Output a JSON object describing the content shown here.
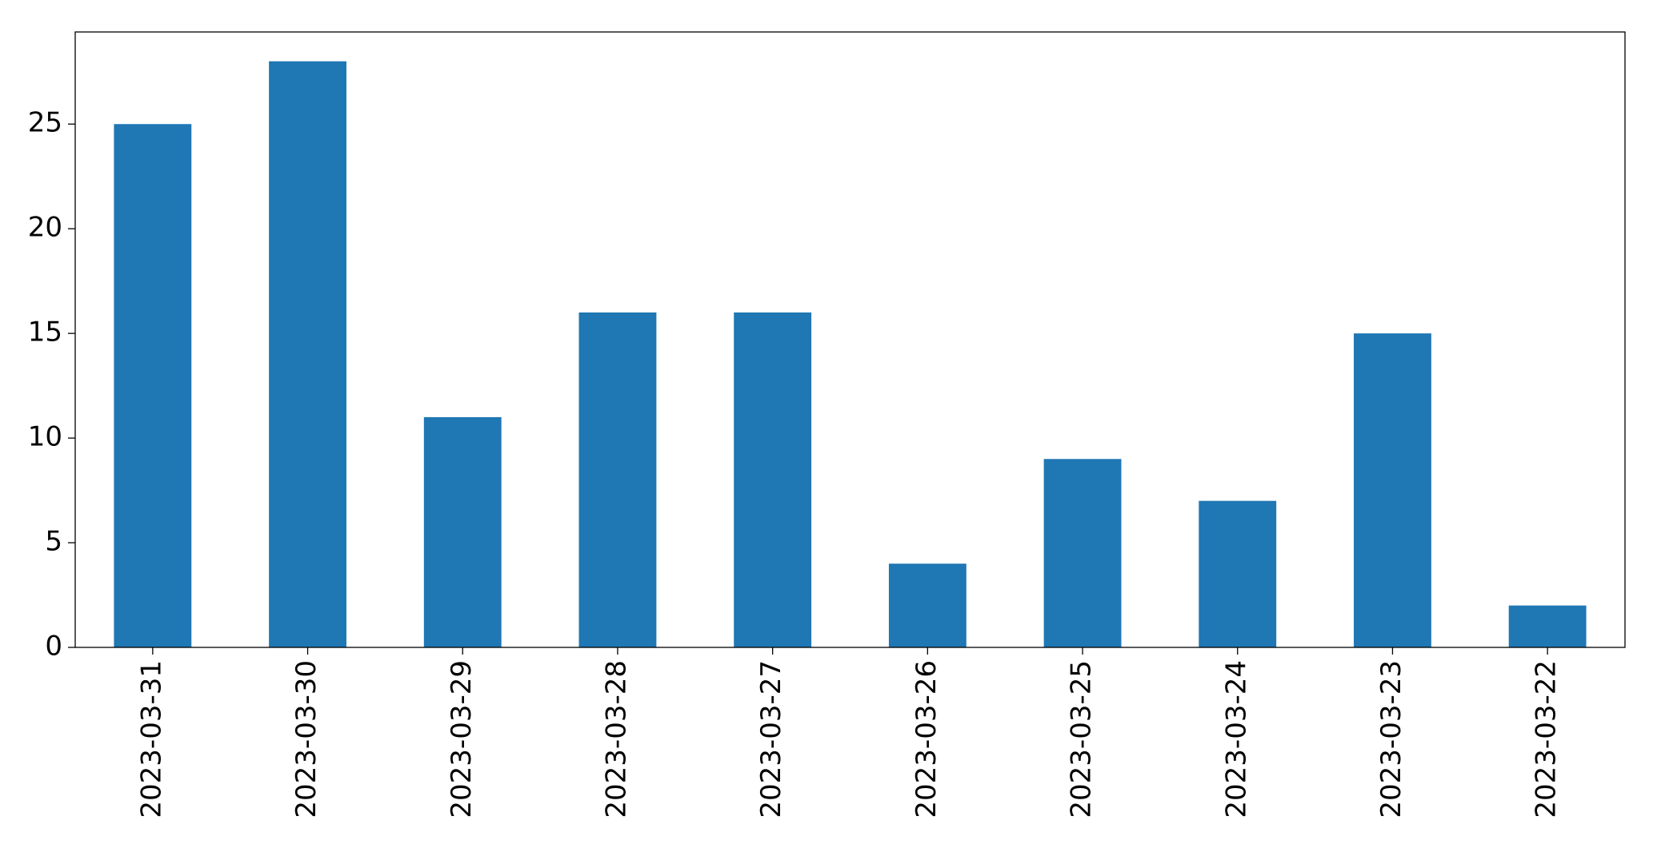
{
  "chart_data": {
    "type": "bar",
    "categories": [
      "2023-03-31",
      "2023-03-30",
      "2023-03-29",
      "2023-03-28",
      "2023-03-27",
      "2023-03-26",
      "2023-03-25",
      "2023-03-24",
      "2023-03-23",
      "2023-03-22"
    ],
    "values": [
      25,
      28,
      11,
      16,
      16,
      4,
      9,
      7,
      15,
      2
    ],
    "color": "#1f77b4",
    "ylim": [
      0,
      29.4
    ],
    "yticks": [
      0,
      5,
      10,
      15,
      20,
      25
    ],
    "grid": false
  }
}
